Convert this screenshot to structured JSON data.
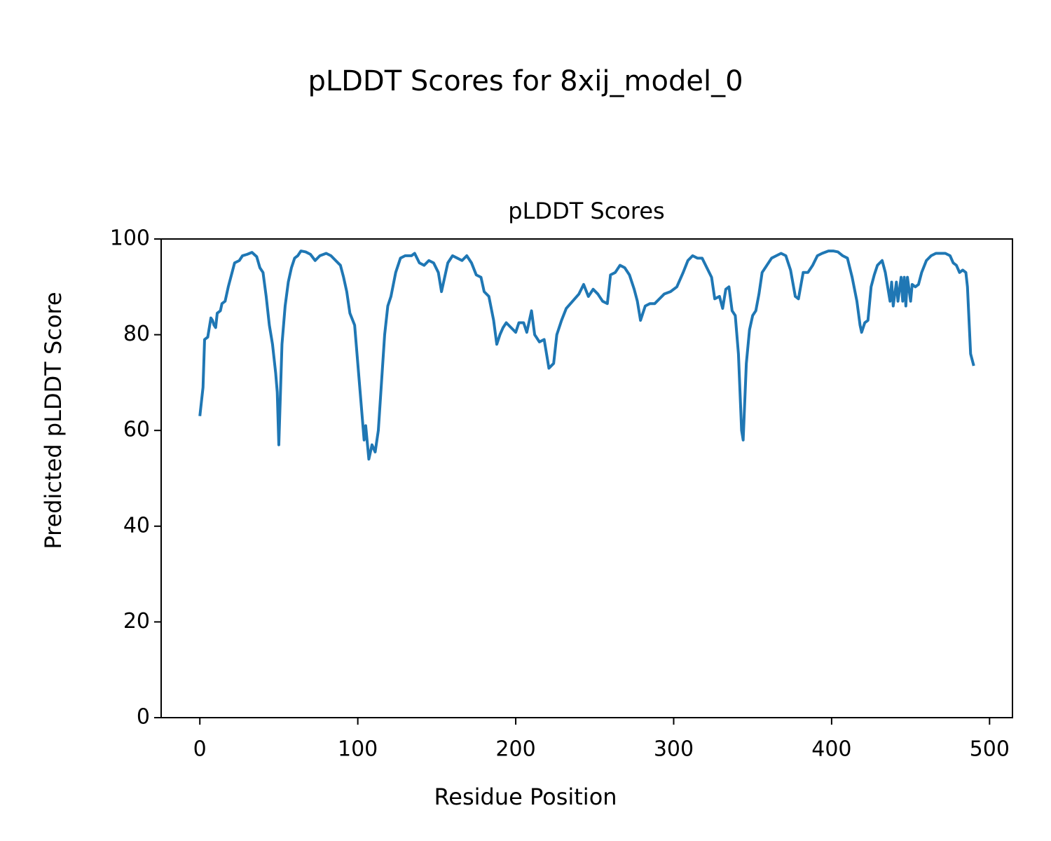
{
  "chart_data": {
    "type": "line",
    "title": "pLDDT Scores for 8xij_model_0",
    "subtitle": "pLDDT Scores",
    "x_label": "Residue Position",
    "y_label": "Predicted pLDDT Score",
    "color": "#1f77b4",
    "x": [
      0,
      2,
      3,
      5,
      7,
      8,
      9,
      10,
      11,
      13,
      14,
      16,
      18,
      20,
      22,
      25,
      27,
      30,
      33,
      36,
      38,
      40,
      42,
      44,
      46,
      48,
      49,
      50,
      52,
      54,
      56,
      58,
      60,
      62,
      64,
      67,
      70,
      73,
      76,
      80,
      83,
      86,
      89,
      91,
      93,
      95,
      98,
      100,
      102,
      104,
      105,
      107,
      109,
      111,
      113,
      115,
      117,
      119,
      121,
      124,
      127,
      130,
      134,
      136,
      139,
      142,
      145,
      148,
      151,
      153,
      155,
      157,
      160,
      163,
      166,
      169,
      172,
      175,
      178,
      180,
      183,
      186,
      188,
      190,
      192,
      194,
      197,
      200,
      202,
      205,
      207,
      210,
      212,
      215,
      218,
      221,
      224,
      226,
      229,
      232,
      236,
      240,
      243,
      246,
      249,
      252,
      255,
      258,
      260,
      263,
      266,
      269,
      272,
      275,
      277,
      279,
      282,
      285,
      288,
      291,
      294,
      298,
      302,
      306,
      309,
      312,
      315,
      318,
      321,
      324,
      326,
      329,
      331,
      333,
      335,
      337,
      339,
      341,
      343,
      344,
      346,
      348,
      350,
      352,
      354,
      356,
      359,
      362,
      365,
      368,
      371,
      374,
      377,
      379,
      382,
      385,
      388,
      391,
      394,
      398,
      401,
      404,
      407,
      410,
      413,
      416,
      418,
      419,
      421,
      423,
      425,
      427,
      429,
      432,
      434,
      436,
      437,
      438,
      439,
      441,
      442,
      444,
      445,
      446,
      447,
      448,
      450,
      451,
      453,
      455,
      457,
      460,
      463,
      466,
      469,
      472,
      475,
      477,
      479,
      481,
      483,
      485,
      486,
      487,
      488,
      490
    ],
    "values": [
      63,
      69,
      79,
      79.5,
      83.5,
      83,
      82,
      81.5,
      84.5,
      85,
      86.5,
      87,
      90,
      92.5,
      95,
      95.5,
      96.5,
      96.8,
      97.2,
      96.3,
      94,
      93,
      88,
      82,
      78,
      72,
      68,
      57,
      78,
      86,
      91,
      94,
      96,
      96.5,
      97.5,
      97.3,
      96.8,
      95.5,
      96.5,
      97,
      96.5,
      95.5,
      94.5,
      92,
      89,
      84.5,
      82,
      74,
      66,
      58,
      61,
      54,
      57,
      55.5,
      60,
      70,
      80,
      86,
      88,
      93,
      96,
      96.5,
      96.5,
      97,
      95,
      94.5,
      95.5,
      95,
      93,
      89,
      92,
      95,
      96.5,
      96,
      95.5,
      96.5,
      95,
      92.5,
      92,
      89,
      88,
      83,
      78,
      80,
      81.5,
      82.5,
      81.5,
      80.5,
      82.5,
      82.5,
      80.5,
      85,
      80,
      78.5,
      79,
      73,
      74,
      80,
      83,
      85.5,
      87,
      88.5,
      90.5,
      88,
      89.5,
      88.5,
      87,
      86.5,
      92.5,
      93,
      94.5,
      94,
      92.5,
      89.5,
      87,
      83,
      86,
      86.5,
      86.5,
      87.5,
      88.5,
      89,
      90,
      93,
      95.5,
      96.5,
      96,
      96,
      94,
      92,
      87.5,
      88,
      85.5,
      89.5,
      90,
      85,
      84,
      76,
      60,
      58,
      74,
      81,
      84,
      85,
      88.5,
      93,
      94.5,
      96,
      96.5,
      97,
      96.5,
      93.5,
      88,
      87.5,
      93,
      93,
      94.5,
      96.5,
      97,
      97.5,
      97.5,
      97.3,
      96.5,
      96,
      92,
      87,
      82,
      80.5,
      82.5,
      83,
      90,
      92.5,
      94.5,
      95.5,
      93,
      89,
      87,
      91,
      86,
      91,
      87,
      92,
      87,
      92,
      86,
      92,
      87,
      90.5,
      90,
      90.5,
      93,
      95.5,
      96.5,
      97,
      97,
      97,
      96.5,
      95,
      94.5,
      93,
      93.5,
      93,
      90,
      83,
      76,
      73.5
    ],
    "xlim": [
      -24.5,
      514.5
    ],
    "xticks": [
      0,
      100,
      200,
      300,
      400,
      500
    ],
    "ylim": [
      0,
      100
    ],
    "yticks": [
      0,
      20,
      40,
      60,
      80,
      100
    ]
  }
}
